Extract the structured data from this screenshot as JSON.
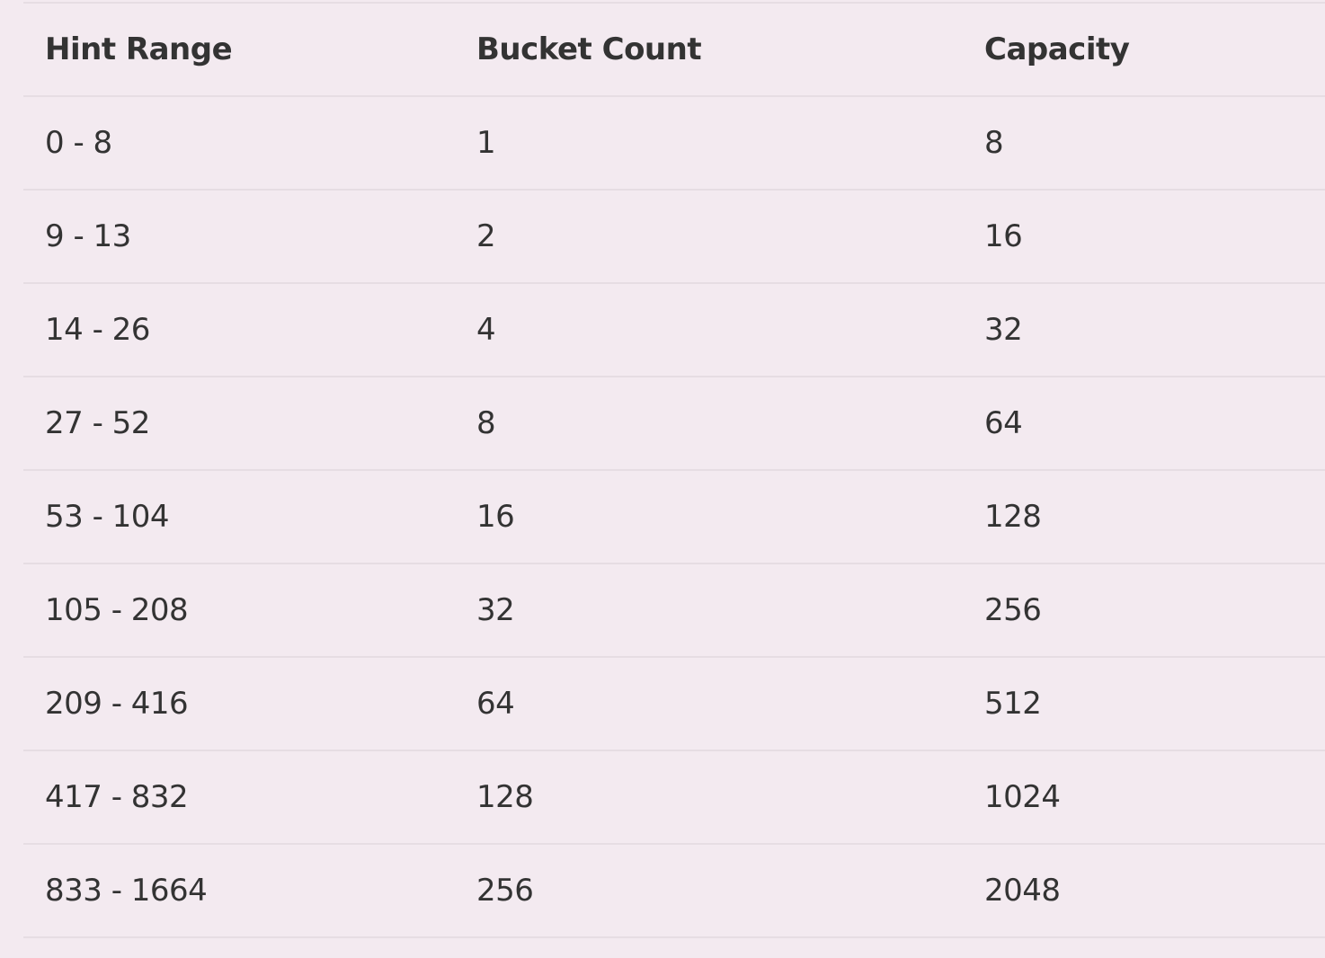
{
  "table": {
    "headers": [
      "Hint Range",
      "Bucket Count",
      "Capacity"
    ],
    "rows": [
      [
        "0 - 8",
        "1",
        "8"
      ],
      [
        "9 - 13",
        "2",
        "16"
      ],
      [
        "14 - 26",
        "4",
        "32"
      ],
      [
        "27 - 52",
        "8",
        "64"
      ],
      [
        "53 - 104",
        "16",
        "128"
      ],
      [
        "105 - 208",
        "32",
        "256"
      ],
      [
        "209 - 416",
        "64",
        "512"
      ],
      [
        "417 - 832",
        "128",
        "1024"
      ],
      [
        "833 - 1664",
        "256",
        "2048"
      ]
    ]
  },
  "colors": {
    "background": "#f3eaf0",
    "text": "#333333",
    "row_divider": "#e6dde3"
  }
}
